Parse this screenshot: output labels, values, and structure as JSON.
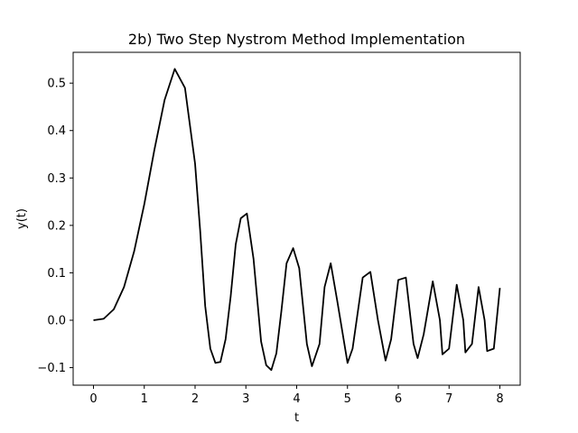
{
  "chart_data": {
    "type": "line",
    "title": "2b) Two Step Nystrom Method Implementation",
    "xlabel": "t",
    "ylabel": "y(t)",
    "xlim": [
      -0.4,
      8.4
    ],
    "ylim": [
      -0.137,
      0.565
    ],
    "xticks": [
      0,
      1,
      2,
      3,
      4,
      5,
      6,
      7,
      8
    ],
    "yticks": [
      -0.1,
      0.0,
      0.1,
      0.2,
      0.3,
      0.4,
      0.5
    ],
    "ytick_labels": [
      "−0.1",
      "0.0",
      "0.1",
      "0.2",
      "0.3",
      "0.4",
      "0.5"
    ],
    "xtick_labels": [
      "0",
      "1",
      "2",
      "3",
      "4",
      "5",
      "6",
      "7",
      "8"
    ],
    "grid": false,
    "legend": "none",
    "series": [
      {
        "color": "#000000",
        "x": [
          0.0,
          0.2,
          0.4,
          0.6,
          0.8,
          1.0,
          1.2,
          1.4,
          1.6,
          1.8,
          2.0,
          2.1,
          2.2,
          2.3,
          2.4,
          2.5,
          2.6,
          2.7,
          2.8,
          2.9,
          3.02,
          3.15,
          3.3,
          3.4,
          3.5,
          3.6,
          3.7,
          3.8,
          3.93,
          4.05,
          4.2,
          4.3,
          4.45,
          4.55,
          4.67,
          4.8,
          5.0,
          5.1,
          5.3,
          5.45,
          5.6,
          5.75,
          5.86,
          6.0,
          6.15,
          6.3,
          6.38,
          6.5,
          6.68,
          6.82,
          6.87,
          7.0,
          7.15,
          7.28,
          7.32,
          7.45,
          7.58,
          7.7,
          7.75,
          7.88,
          8.0
        ],
        "y": [
          0.0,
          0.003,
          0.023,
          0.07,
          0.145,
          0.245,
          0.36,
          0.465,
          0.53,
          0.49,
          0.33,
          0.19,
          0.03,
          -0.06,
          -0.09,
          -0.088,
          -0.04,
          0.05,
          0.16,
          0.215,
          0.225,
          0.13,
          -0.045,
          -0.095,
          -0.105,
          -0.07,
          0.02,
          0.12,
          0.152,
          0.11,
          -0.05,
          -0.097,
          -0.05,
          0.07,
          0.12,
          0.04,
          -0.09,
          -0.06,
          0.09,
          0.102,
          0.0,
          -0.085,
          -0.04,
          0.085,
          0.09,
          -0.05,
          -0.08,
          -0.03,
          0.082,
          0.0,
          -0.072,
          -0.06,
          0.075,
          0.0,
          -0.068,
          -0.05,
          0.07,
          0.0,
          -0.065,
          -0.06,
          0.068
        ]
      }
    ]
  }
}
